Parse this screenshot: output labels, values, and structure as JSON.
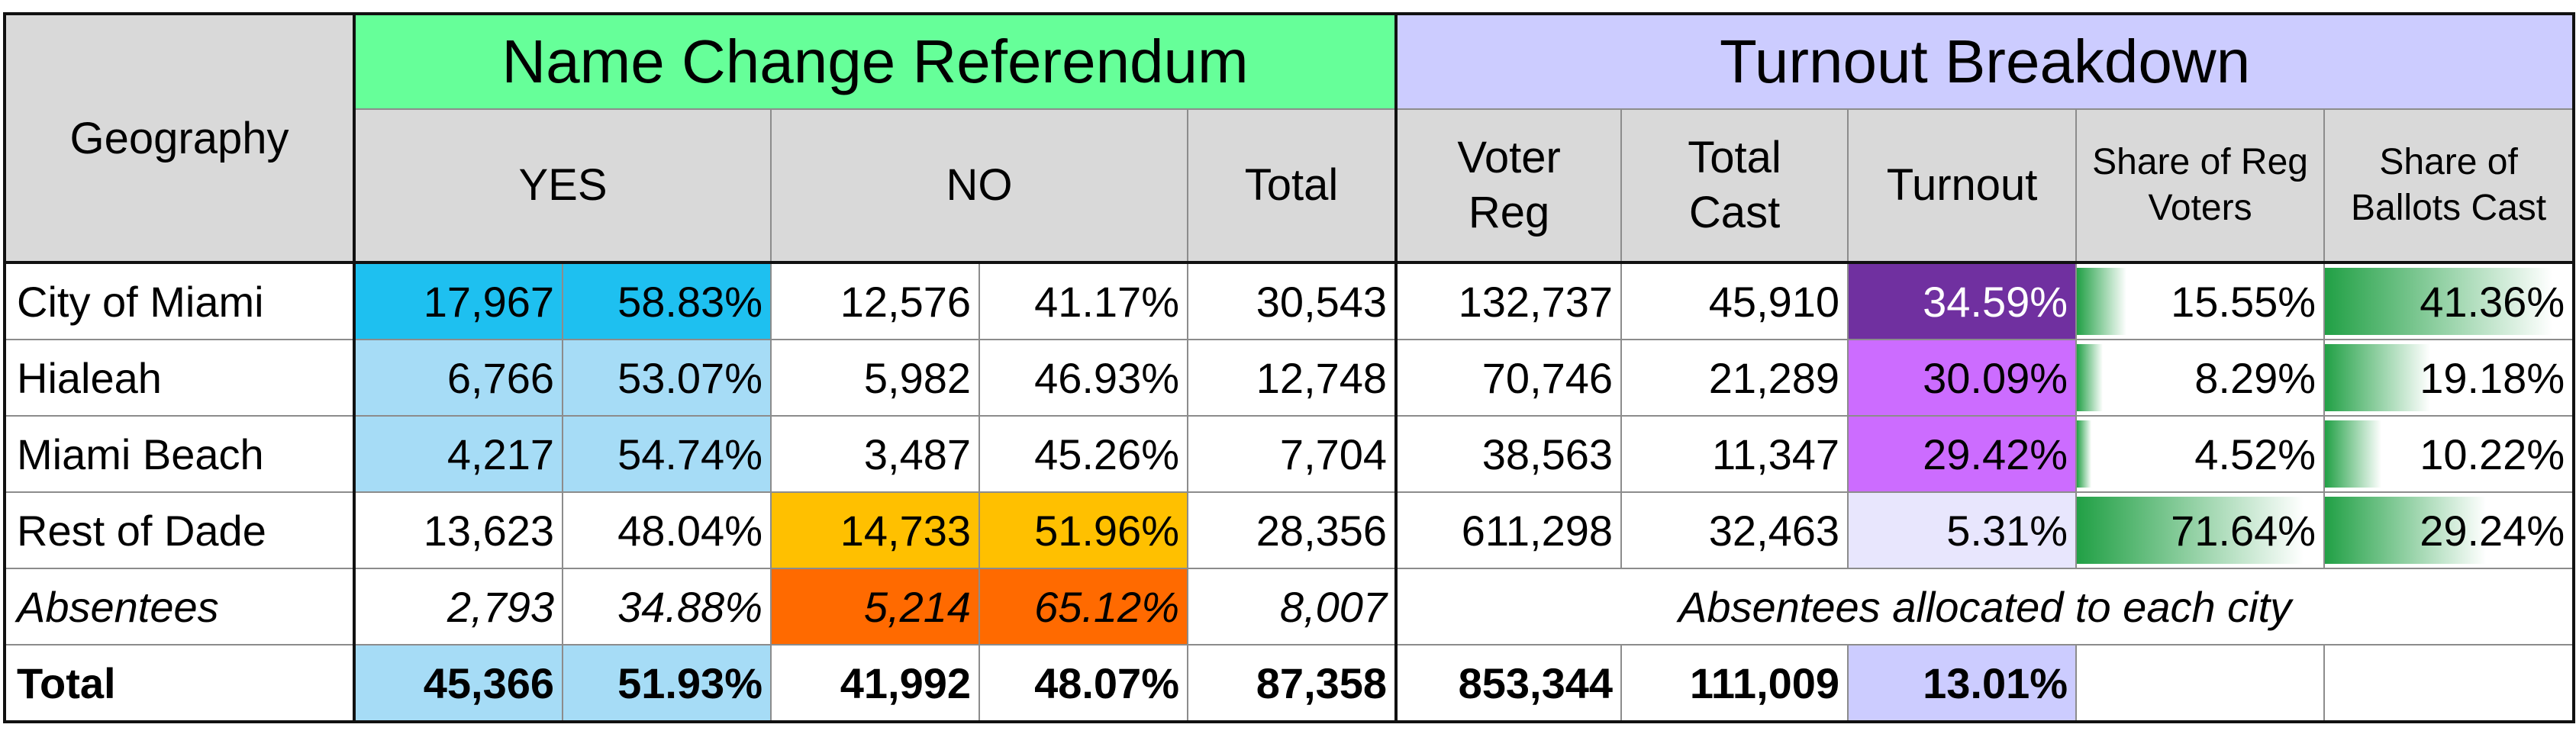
{
  "header": {
    "title_referendum": "Name Change Referendum",
    "title_turnout": "Turnout Breakdown",
    "geography": "Geography",
    "columns": [
      "YES",
      "NO",
      "Total",
      "Voter Reg",
      "Total Cast",
      "Turnout",
      "Share of Reg Voters",
      "Share of Ballots Cast"
    ]
  },
  "table": {
    "rows": [
      [
        "City of Miami",
        "17,967",
        "58.83%",
        "12,576",
        "41.17%",
        "30,543",
        "132,737",
        "45,910",
        "34.59%",
        "15.55%",
        "41.36%"
      ],
      [
        "Hialeah",
        "6,766",
        "53.07%",
        "5,982",
        "46.93%",
        "12,748",
        "70,746",
        "21,289",
        "30.09%",
        "8.29%",
        "19.18%"
      ],
      [
        "Miami Beach",
        "4,217",
        "54.74%",
        "3,487",
        "45.26%",
        "7,704",
        "38,563",
        "11,347",
        "29.42%",
        "4.52%",
        "10.22%"
      ],
      [
        "Rest of Dade",
        "13,623",
        "48.04%",
        "14,733",
        "51.96%",
        "28,356",
        "611,298",
        "32,463",
        "5.31%",
        "71.64%",
        "29.24%"
      ],
      [
        "Absentees",
        "2,793",
        "34.88%",
        "5,214",
        "65.12%",
        "8,007"
      ],
      [
        "Total",
        "45,366",
        "51.93%",
        "41,992",
        "48.07%",
        "87,358",
        "853,344",
        "111,009",
        "13.01%"
      ]
    ],
    "absentee_note": "Absentees allocated to each city"
  }
}
